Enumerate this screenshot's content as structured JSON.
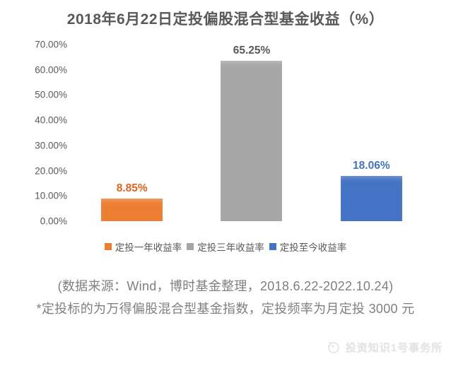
{
  "chart_data": {
    "type": "bar",
    "title": "2018年6月22日定投偏股混合型基金收益（%）",
    "categories": [
      "定投一年收益率",
      "定投三年收益率",
      "定投至今收益率"
    ],
    "values": [
      8.85,
      65.25,
      18.06
    ],
    "value_labels": [
      "8.85%",
      "65.25%",
      "18.06%"
    ],
    "bar_colors": [
      "#ED7D31",
      "#A6A6A6",
      "#4472C4"
    ],
    "value_label_colors": [
      "#E8611C",
      "#595959",
      "#4472C4"
    ],
    "xlabel": "",
    "ylabel": "",
    "ylim": [
      0,
      70
    ],
    "y_tick_labels": [
      "70.00%",
      "60.00%",
      "50.00%",
      "40.00%",
      "30.00%",
      "20.00%",
      "10.00%",
      "0.00%"
    ],
    "grid": false,
    "legend_position": "bottom"
  },
  "legend": {
    "items": [
      {
        "label": "定投一年收益率",
        "color": "#ED7D31"
      },
      {
        "label": "定投三年收益率",
        "color": "#A6A6A6"
      },
      {
        "label": "定投至今收益率",
        "color": "#4472C4"
      }
    ]
  },
  "notes": {
    "source": "(数据来源：Wind，博时基金整理，2018.6.22-2022.10.24)",
    "footnote": "*定投标的为万得偏股混合型基金指数，定投频率为月定投 3000 元"
  },
  "watermark": {
    "brand": "投资知识1号事务所"
  }
}
